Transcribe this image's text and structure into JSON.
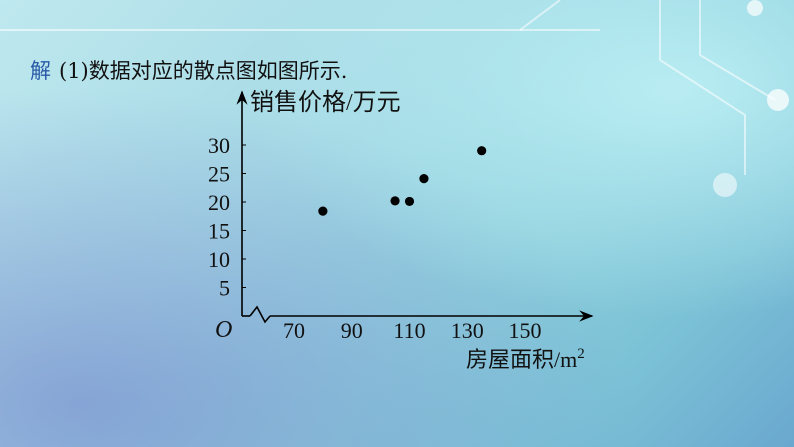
{
  "intro": {
    "prefix": "解",
    "text": "(1)数据对应的散点图如图所示."
  },
  "chart_data": {
    "type": "scatter",
    "ylabel": "销售价格/万元",
    "xlabel": "房屋面积/m²",
    "origin_label": "O",
    "x_ticks": [
      70,
      90,
      110,
      130,
      150
    ],
    "y_ticks": [
      5,
      10,
      15,
      20,
      25,
      30
    ],
    "axis_break": true,
    "points": [
      {
        "x": 80,
        "y": 18.4
      },
      {
        "x": 105,
        "y": 20.2
      },
      {
        "x": 110,
        "y": 20.1
      },
      {
        "x": 115,
        "y": 24.1
      },
      {
        "x": 135,
        "y": 29
      }
    ],
    "colors": {
      "point": "#000000",
      "axis": "#000000",
      "accent": "#2a5aa8"
    }
  }
}
